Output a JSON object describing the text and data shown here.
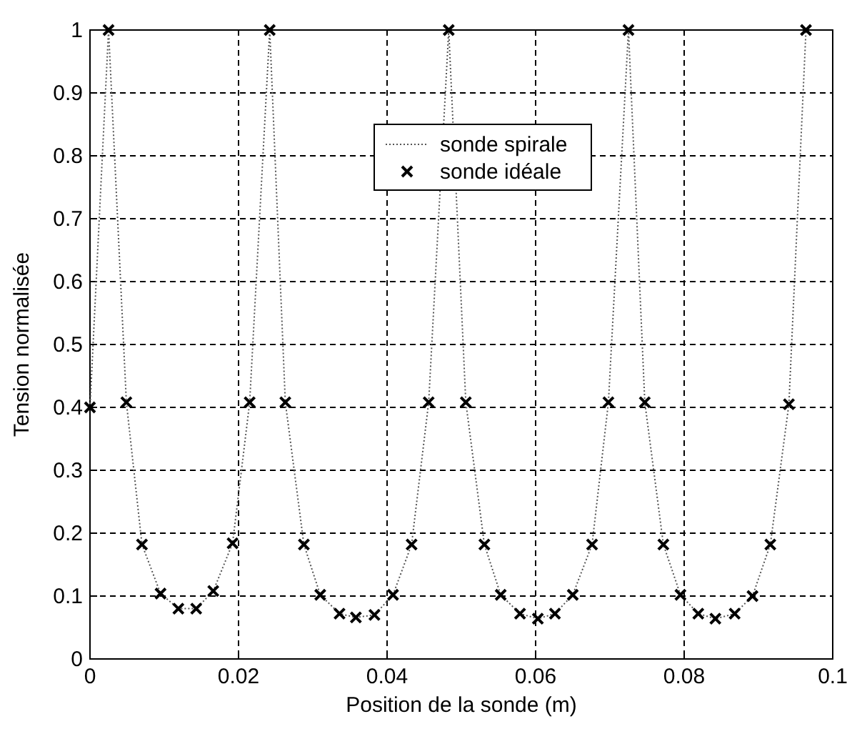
{
  "chart_data": {
    "type": "line",
    "xlabel": "Position de la sonde (m)",
    "ylabel": "Tension normalisée",
    "xlim": [
      0,
      0.1
    ],
    "ylim": [
      0,
      1
    ],
    "xticks": [
      0,
      0.02,
      0.04,
      0.06,
      0.08,
      0.1
    ],
    "yticks": [
      0,
      0.1,
      0.2,
      0.3,
      0.4,
      0.5,
      0.6,
      0.7,
      0.8,
      0.9,
      1
    ],
    "grid": true,
    "legend": "top",
    "x": [
      0,
      0.0025,
      0.0049,
      0.007,
      0.0095,
      0.0119,
      0.0143,
      0.0166,
      0.0192,
      0.0215,
      0.0242,
      0.0263,
      0.0288,
      0.031,
      0.0336,
      0.0358,
      0.0383,
      0.0408,
      0.0433,
      0.0456,
      0.0483,
      0.0506,
      0.0531,
      0.0553,
      0.0579,
      0.0603,
      0.0626,
      0.065,
      0.0676,
      0.0698,
      0.0725,
      0.0747,
      0.0772,
      0.0795,
      0.0819,
      0.0842,
      0.0868,
      0.0892,
      0.0916,
      0.0941,
      0.0964
    ],
    "series": [
      {
        "name": "sonde spirale",
        "color": "#555555",
        "line_style": "dotted",
        "marker": "none",
        "values": [
          0.4,
          1,
          0.408,
          0.182,
          0.104,
          0.08,
          0.08,
          0.108,
          0.184,
          0.408,
          1,
          0.408,
          0.182,
          0.102,
          0.072,
          0.066,
          0.07,
          0.102,
          0.182,
          0.408,
          1,
          0.408,
          0.182,
          0.102,
          0.072,
          0.064,
          0.072,
          0.102,
          0.182,
          0.408,
          1,
          0.408,
          0.182,
          0.102,
          0.072,
          0.064,
          0.072,
          0.1,
          0.182,
          0.405,
          1
        ]
      },
      {
        "name": "sonde idéale",
        "type": "scatter",
        "color": "#000000",
        "marker": "cross",
        "values": [
          0.4,
          1,
          0.408,
          0.182,
          0.104,
          0.08,
          0.08,
          0.108,
          0.184,
          0.408,
          1,
          0.408,
          0.182,
          0.102,
          0.072,
          0.066,
          0.07,
          0.102,
          0.182,
          0.408,
          1,
          0.408,
          0.182,
          0.102,
          0.072,
          0.064,
          0.072,
          0.102,
          0.182,
          0.408,
          1,
          0.408,
          0.182,
          0.102,
          0.072,
          0.064,
          0.072,
          0.1,
          0.182,
          0.405,
          1
        ]
      }
    ]
  }
}
